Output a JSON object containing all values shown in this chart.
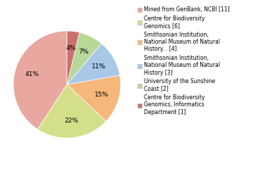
{
  "labels": [
    "Mined from GenBank, NCBI [11]",
    "Centre for Biodiversity\nGenomics [6]",
    "Smithsonian Institution,\nNational Museum of Natural\nHistory... [4]",
    "Smithsonian Institution,\nNational Museum of Natural\nHistory [3]",
    "University of the Sunshine\nCoast [2]",
    "Centre for Biodiversity\nGenomics, Informatics\nDepartment [1]"
  ],
  "values": [
    11,
    6,
    4,
    3,
    2,
    1
  ],
  "colors": [
    "#e8a8a0",
    "#d4df8a",
    "#f5b87a",
    "#a8c8e8",
    "#b8d898",
    "#cc7070"
  ],
  "pct_colors": [
    "black",
    "black",
    "black",
    "black",
    "black",
    "black"
  ],
  "startangle": 90,
  "figsize": [
    3.8,
    2.4
  ],
  "dpi": 100,
  "legend_fontsize": 5.5,
  "pct_fontsize": 6.5
}
